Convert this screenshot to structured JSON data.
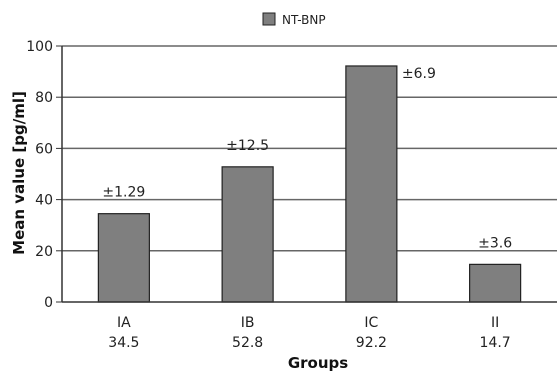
{
  "chart_data": {
    "type": "bar",
    "legend": "NT-BNP",
    "legend_position": "top-center",
    "xlabel": "Groups",
    "ylabel": "Mean value [pg/ml]",
    "categories": [
      "IA",
      "IB",
      "IC",
      "II"
    ],
    "value_labels": [
      "34.5",
      "52.8",
      "92.2",
      "14.7"
    ],
    "values": [
      34.5,
      52.8,
      92.2,
      14.7
    ],
    "errors": [
      "±1.29",
      "±12.5",
      "±6.9",
      "±3.6"
    ],
    "yticks": [
      0,
      20,
      40,
      60,
      80,
      100
    ],
    "ylim": [
      0,
      100
    ],
    "grid": true,
    "colors": {
      "bar": "#7f7f7f",
      "bar_stroke": "#222222",
      "grid": "#666666",
      "axis": "#333333"
    }
  }
}
